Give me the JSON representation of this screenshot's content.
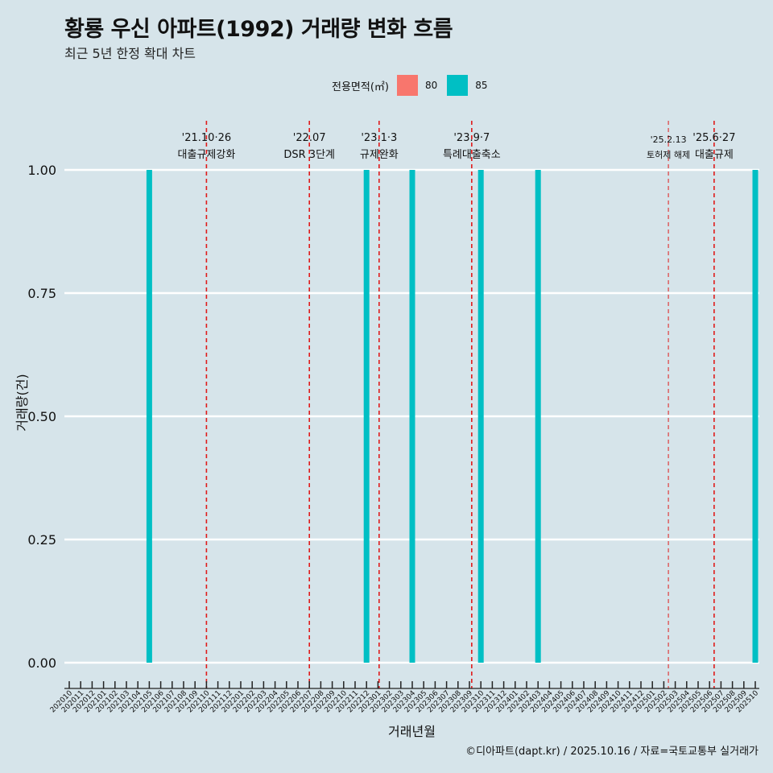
{
  "header": {
    "title": "황룡 우신 아파트(1992) 거래량 변화 흐름",
    "subtitle": "최근 5년 한정 확대 차트"
  },
  "legend": {
    "title": "전용면적(㎡)",
    "items": [
      {
        "label": "80",
        "color": "#f8766d"
      },
      {
        "label": "85",
        "color": "#00bfc4"
      }
    ]
  },
  "footer": {
    "credit": "©디아파트(dapt.kr) / 2025.10.16 / 자료=국토교통부 실거래가"
  },
  "chart_data": {
    "type": "bar",
    "xlabel": "거래년월",
    "ylabel": "거래량(건)",
    "ylim": [
      0,
      1
    ],
    "yticks": [
      0,
      0.25,
      0.5,
      0.75,
      1
    ],
    "ytick_labels": [
      "0.00",
      "0.25",
      "0.50",
      "0.75",
      "1.00"
    ],
    "categories": [
      "202010",
      "202011",
      "202012",
      "202101",
      "202102",
      "202103",
      "202104",
      "202105",
      "202106",
      "202107",
      "202108",
      "202109",
      "202110",
      "202111",
      "202112",
      "202201",
      "202202",
      "202203",
      "202204",
      "202205",
      "202206",
      "202207",
      "202208",
      "202209",
      "202210",
      "202211",
      "202212",
      "202301",
      "202302",
      "202303",
      "202304",
      "202305",
      "202306",
      "202307",
      "202308",
      "202309",
      "202310",
      "202311",
      "202312",
      "202401",
      "202402",
      "202403",
      "202404",
      "202405",
      "202406",
      "202407",
      "202408",
      "202409",
      "202410",
      "202411",
      "202412",
      "202501",
      "202502",
      "202503",
      "202504",
      "202505",
      "202506",
      "202507",
      "202508",
      "202509",
      "202510"
    ],
    "series": [
      {
        "name": "85",
        "color": "#00bfc4",
        "points": [
          {
            "x": "202105",
            "y": 1
          },
          {
            "x": "202212",
            "y": 1
          },
          {
            "x": "202304",
            "y": 1
          },
          {
            "x": "202310",
            "y": 1
          },
          {
            "x": "202403",
            "y": 1
          },
          {
            "x": "202510",
            "y": 1
          }
        ]
      }
    ],
    "annotations": [
      {
        "x": 12.0,
        "date": "'21.10·26",
        "label": "대출규제강화",
        "small": false
      },
      {
        "x": 21.0,
        "date": "'22.07",
        "label": "DSR 3단계",
        "small": false
      },
      {
        "x": 27.1,
        "date": "'23.1·3",
        "label": "규제완화",
        "small": false
      },
      {
        "x": 35.2,
        "date": "'23.9·7",
        "label": "특례대출축소",
        "small": false
      },
      {
        "x": 52.4,
        "date": "'25.2.13",
        "label": "토허제 해제",
        "small": true
      },
      {
        "x": 56.4,
        "date": "'25.6·27",
        "label": "대출규제",
        "small": false
      }
    ]
  }
}
